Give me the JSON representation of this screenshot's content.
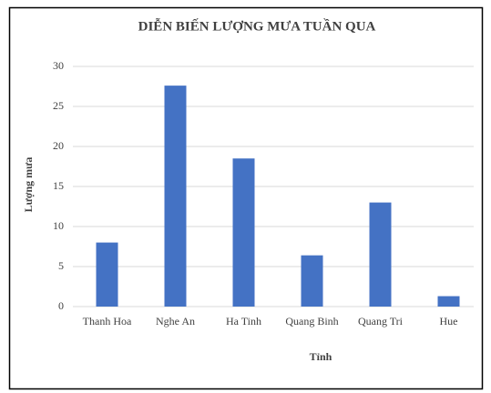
{
  "chart_data": {
    "type": "bar",
    "title": "DIỄN BIẾN LƯỢNG MƯA TUẦN QUA",
    "y_label": "Lượng mưa",
    "x_label": "Tỉnh",
    "categories": [
      "Thanh Hoa",
      "Nghe An",
      "Ha Tinh",
      "Quang Binh",
      "Quang Tri",
      "Hue"
    ],
    "values": [
      8,
      27.6,
      18.5,
      6.4,
      13,
      1.3
    ],
    "color": "#4472c4",
    "ylim": [
      0,
      30
    ],
    "yticks": [
      0,
      5,
      10,
      15,
      20,
      25,
      30
    ],
    "grid": true
  }
}
